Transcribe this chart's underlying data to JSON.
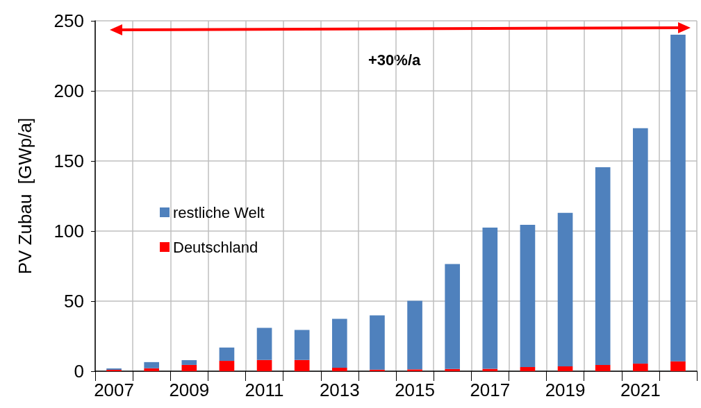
{
  "chart_data": {
    "type": "bar",
    "stacked": true,
    "ylabel": "PV Zubau  [GWp/a]",
    "categories": [
      "2007",
      null,
      "2009",
      null,
      "2011",
      null,
      "2013",
      null,
      "2015",
      null,
      "2017",
      null,
      "2019",
      null,
      "2021",
      null
    ],
    "series": [
      {
        "name": "Deutschland",
        "color": "#ff0000",
        "values": [
          1.0,
          2.1,
          4.5,
          7.4,
          8.0,
          8.0,
          2.5,
          1.1,
          1.3,
          1.6,
          1.7,
          3.0,
          3.5,
          4.5,
          5.4,
          7.1
        ]
      },
      {
        "name": "restliche Welt",
        "color": "#4f81bd",
        "values": [
          1.0,
          4.4,
          3.4,
          9.5,
          23.0,
          21.5,
          34.9,
          38.8,
          49.0,
          74.9,
          100.8,
          101.5,
          109.5,
          141.0,
          168.0,
          233.0
        ]
      }
    ],
    "ylim": [
      0,
      250
    ],
    "yticks": [
      0,
      50,
      100,
      150,
      200,
      250
    ],
    "grid": true,
    "legend": "left",
    "annotations": [
      "+30%/a"
    ]
  }
}
